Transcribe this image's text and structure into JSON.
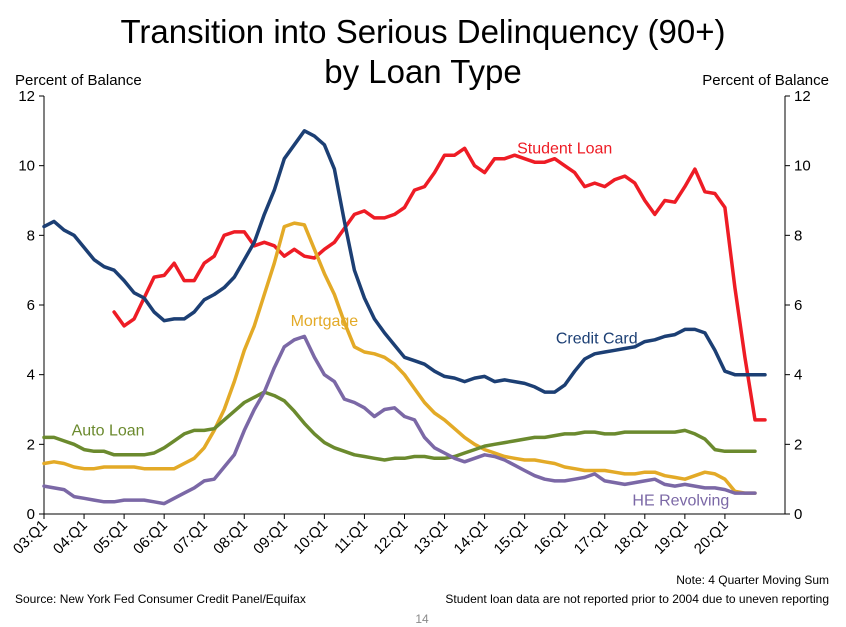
{
  "slide": {
    "title_line1": "Transition into Serious Delinquency (90+)",
    "title_line2": "by Loan Type",
    "y_axis_left_title": "Percent of Balance",
    "y_axis_right_title": "Percent of Balance",
    "note": "Note: 4 Quarter Moving Sum",
    "source": "Source: New York Fed Consumer Credit Panel/Equifax",
    "student_loan_note": "Student loan data are not reported prior to 2004 due to uneven reporting",
    "page_number": "14"
  },
  "chart_data": {
    "type": "line",
    "title": "Transition into Serious Delinquency (90+) by Loan Type",
    "ylabel": "Percent of Balance",
    "ylim": [
      0,
      12
    ],
    "yticks": [
      0,
      2,
      4,
      6,
      8,
      10,
      12
    ],
    "xlim": [
      2003.0,
      2021.5
    ],
    "xtick_labels": [
      "03:Q1",
      "04:Q1",
      "05:Q1",
      "06:Q1",
      "07:Q1",
      "08:Q1",
      "09:Q1",
      "10:Q1",
      "11:Q1",
      "12:Q1",
      "13:Q1",
      "14:Q1",
      "15:Q1",
      "16:Q1",
      "17:Q1",
      "18:Q1",
      "19:Q1",
      "20:Q1"
    ],
    "xtick_values": [
      2003,
      2004,
      2005,
      2006,
      2007,
      2008,
      2009,
      2010,
      2011,
      2012,
      2013,
      2014,
      2015,
      2016,
      2017,
      2018,
      2019,
      2020
    ],
    "grid": false,
    "series": [
      {
        "name": "Student Loan",
        "color": "#ee1c25",
        "x": [
          2004.75,
          2005.0,
          2005.25,
          2005.5,
          2005.75,
          2006.0,
          2006.25,
          2006.5,
          2006.75,
          2007.0,
          2007.25,
          2007.5,
          2007.75,
          2008.0,
          2008.25,
          2008.5,
          2008.75,
          2009.0,
          2009.25,
          2009.5,
          2009.75,
          2010.0,
          2010.25,
          2010.5,
          2010.75,
          2011.0,
          2011.25,
          2011.5,
          2011.75,
          2012.0,
          2012.25,
          2012.5,
          2012.75,
          2013.0,
          2013.25,
          2013.5,
          2013.75,
          2014.0,
          2014.25,
          2014.5,
          2014.75,
          2015.0,
          2015.25,
          2015.5,
          2015.75,
          2016.0,
          2016.25,
          2016.5,
          2016.75,
          2017.0,
          2017.25,
          2017.5,
          2017.75,
          2018.0,
          2018.25,
          2018.5,
          2018.75,
          2019.0,
          2019.25,
          2019.5,
          2019.75,
          2020.0,
          2020.25,
          2020.5,
          2020.75,
          2021.0
        ],
        "values": [
          5.8,
          5.4,
          5.6,
          6.2,
          6.8,
          6.85,
          7.2,
          6.7,
          6.7,
          7.2,
          7.4,
          8.0,
          8.1,
          8.1,
          7.7,
          7.8,
          7.7,
          7.4,
          7.6,
          7.4,
          7.35,
          7.6,
          7.8,
          8.2,
          8.6,
          8.7,
          8.5,
          8.5,
          8.6,
          8.8,
          9.3,
          9.4,
          9.8,
          10.3,
          10.3,
          10.5,
          10.0,
          9.8,
          10.2,
          10.2,
          10.3,
          10.2,
          10.1,
          10.1,
          10.2,
          10.0,
          9.8,
          9.4,
          9.5,
          9.4,
          9.6,
          9.7,
          9.5,
          9.0,
          8.6,
          9.0,
          8.95,
          9.4,
          9.9,
          9.25,
          9.2,
          8.8,
          6.5,
          4.5,
          2.7,
          2.7
        ]
      },
      {
        "name": "Credit Card",
        "color": "#1c3f74",
        "x": [
          2003.0,
          2003.25,
          2003.5,
          2003.75,
          2004.0,
          2004.25,
          2004.5,
          2004.75,
          2005.0,
          2005.25,
          2005.5,
          2005.75,
          2006.0,
          2006.25,
          2006.5,
          2006.75,
          2007.0,
          2007.25,
          2007.5,
          2007.75,
          2008.0,
          2008.25,
          2008.5,
          2008.75,
          2009.0,
          2009.25,
          2009.5,
          2009.75,
          2010.0,
          2010.25,
          2010.5,
          2010.75,
          2011.0,
          2011.25,
          2011.5,
          2011.75,
          2012.0,
          2012.25,
          2012.5,
          2012.75,
          2013.0,
          2013.25,
          2013.5,
          2013.75,
          2014.0,
          2014.25,
          2014.5,
          2014.75,
          2015.0,
          2015.25,
          2015.5,
          2015.75,
          2016.0,
          2016.25,
          2016.5,
          2016.75,
          2017.0,
          2017.25,
          2017.5,
          2017.75,
          2018.0,
          2018.25,
          2018.5,
          2018.75,
          2019.0,
          2019.25,
          2019.5,
          2019.75,
          2020.0,
          2020.25,
          2020.5,
          2020.75,
          2021.0
        ],
        "values": [
          8.25,
          8.4,
          8.15,
          8.0,
          7.65,
          7.3,
          7.1,
          7.0,
          6.7,
          6.35,
          6.2,
          5.8,
          5.55,
          5.6,
          5.6,
          5.8,
          6.15,
          6.3,
          6.5,
          6.8,
          7.3,
          7.8,
          8.6,
          9.3,
          10.2,
          10.6,
          11.0,
          10.85,
          10.6,
          9.9,
          8.4,
          7.0,
          6.2,
          5.6,
          5.2,
          4.85,
          4.5,
          4.4,
          4.3,
          4.1,
          3.95,
          3.9,
          3.8,
          3.9,
          3.95,
          3.8,
          3.85,
          3.8,
          3.75,
          3.65,
          3.5,
          3.5,
          3.7,
          4.1,
          4.45,
          4.6,
          4.65,
          4.7,
          4.75,
          4.8,
          4.95,
          5.0,
          5.1,
          5.15,
          5.3,
          5.3,
          5.2,
          4.7,
          4.1,
          4.0,
          4.0,
          4.0,
          4.0
        ]
      },
      {
        "name": "Mortgage",
        "color": "#e3aa27",
        "x": [
          2003.0,
          2003.25,
          2003.5,
          2003.75,
          2004.0,
          2004.25,
          2004.5,
          2004.75,
          2005.0,
          2005.25,
          2005.5,
          2005.75,
          2006.0,
          2006.25,
          2006.5,
          2006.75,
          2007.0,
          2007.25,
          2007.5,
          2007.75,
          2008.0,
          2008.25,
          2008.5,
          2008.75,
          2009.0,
          2009.25,
          2009.5,
          2009.75,
          2010.0,
          2010.25,
          2010.5,
          2010.75,
          2011.0,
          2011.25,
          2011.5,
          2011.75,
          2012.0,
          2012.25,
          2012.5,
          2012.75,
          2013.0,
          2013.25,
          2013.5,
          2013.75,
          2014.0,
          2014.25,
          2014.5,
          2014.75,
          2015.0,
          2015.25,
          2015.5,
          2015.75,
          2016.0,
          2016.25,
          2016.5,
          2016.75,
          2017.0,
          2017.25,
          2017.5,
          2017.75,
          2018.0,
          2018.25,
          2018.5,
          2018.75,
          2019.0,
          2019.25,
          2019.5,
          2019.75,
          2020.0,
          2020.25,
          2020.5,
          2020.75
        ],
        "values": [
          1.45,
          1.5,
          1.45,
          1.35,
          1.3,
          1.3,
          1.35,
          1.35,
          1.35,
          1.35,
          1.3,
          1.3,
          1.3,
          1.3,
          1.45,
          1.6,
          1.9,
          2.4,
          3.0,
          3.8,
          4.7,
          5.4,
          6.3,
          7.2,
          8.25,
          8.35,
          8.3,
          7.6,
          6.9,
          6.3,
          5.5,
          4.8,
          4.65,
          4.6,
          4.5,
          4.3,
          4.0,
          3.6,
          3.2,
          2.9,
          2.7,
          2.45,
          2.2,
          2.0,
          1.85,
          1.75,
          1.65,
          1.6,
          1.55,
          1.55,
          1.5,
          1.45,
          1.35,
          1.3,
          1.25,
          1.25,
          1.25,
          1.2,
          1.15,
          1.15,
          1.2,
          1.2,
          1.1,
          1.05,
          1.0,
          1.1,
          1.2,
          1.15,
          1.0,
          0.65,
          0.6,
          0.6
        ]
      },
      {
        "name": "Auto Loan",
        "color": "#6b8a2e",
        "x": [
          2003.0,
          2003.25,
          2003.5,
          2003.75,
          2004.0,
          2004.25,
          2004.5,
          2004.75,
          2005.0,
          2005.25,
          2005.5,
          2005.75,
          2006.0,
          2006.25,
          2006.5,
          2006.75,
          2007.0,
          2007.25,
          2007.5,
          2007.75,
          2008.0,
          2008.25,
          2008.5,
          2008.75,
          2009.0,
          2009.25,
          2009.5,
          2009.75,
          2010.0,
          2010.25,
          2010.5,
          2010.75,
          2011.0,
          2011.25,
          2011.5,
          2011.75,
          2012.0,
          2012.25,
          2012.5,
          2012.75,
          2013.0,
          2013.25,
          2013.5,
          2013.75,
          2014.0,
          2014.25,
          2014.5,
          2014.75,
          2015.0,
          2015.25,
          2015.5,
          2015.75,
          2016.0,
          2016.25,
          2016.5,
          2016.75,
          2017.0,
          2017.25,
          2017.5,
          2017.75,
          2018.0,
          2018.25,
          2018.5,
          2018.75,
          2019.0,
          2019.25,
          2019.5,
          2019.75,
          2020.0,
          2020.25,
          2020.5,
          2020.75
        ],
        "values": [
          2.2,
          2.2,
          2.1,
          2.0,
          1.85,
          1.8,
          1.8,
          1.7,
          1.7,
          1.7,
          1.7,
          1.75,
          1.9,
          2.1,
          2.3,
          2.4,
          2.4,
          2.45,
          2.7,
          2.95,
          3.2,
          3.35,
          3.5,
          3.4,
          3.25,
          2.95,
          2.6,
          2.3,
          2.05,
          1.9,
          1.8,
          1.7,
          1.65,
          1.6,
          1.55,
          1.6,
          1.6,
          1.65,
          1.65,
          1.6,
          1.6,
          1.65,
          1.75,
          1.85,
          1.95,
          2.0,
          2.05,
          2.1,
          2.15,
          2.2,
          2.2,
          2.25,
          2.3,
          2.3,
          2.35,
          2.35,
          2.3,
          2.3,
          2.35,
          2.35,
          2.35,
          2.35,
          2.35,
          2.35,
          2.4,
          2.3,
          2.15,
          1.85,
          1.8,
          1.8,
          1.8,
          1.8
        ]
      },
      {
        "name": "HE Revolving",
        "color": "#7b68a6",
        "x": [
          2003.0,
          2003.25,
          2003.5,
          2003.75,
          2004.0,
          2004.25,
          2004.5,
          2004.75,
          2005.0,
          2005.25,
          2005.5,
          2005.75,
          2006.0,
          2006.25,
          2006.5,
          2006.75,
          2007.0,
          2007.25,
          2007.5,
          2007.75,
          2008.0,
          2008.25,
          2008.5,
          2008.75,
          2009.0,
          2009.25,
          2009.5,
          2009.75,
          2010.0,
          2010.25,
          2010.5,
          2010.75,
          2011.0,
          2011.25,
          2011.5,
          2011.75,
          2012.0,
          2012.25,
          2012.5,
          2012.75,
          2013.0,
          2013.25,
          2013.5,
          2013.75,
          2014.0,
          2014.25,
          2014.5,
          2014.75,
          2015.0,
          2015.25,
          2015.5,
          2015.75,
          2016.0,
          2016.25,
          2016.5,
          2016.75,
          2017.0,
          2017.25,
          2017.5,
          2017.75,
          2018.0,
          2018.25,
          2018.5,
          2018.75,
          2019.0,
          2019.25,
          2019.5,
          2019.75,
          2020.0,
          2020.25,
          2020.5,
          2020.75
        ],
        "values": [
          0.8,
          0.75,
          0.7,
          0.5,
          0.45,
          0.4,
          0.35,
          0.35,
          0.4,
          0.4,
          0.4,
          0.35,
          0.3,
          0.45,
          0.6,
          0.75,
          0.95,
          1.0,
          1.35,
          1.7,
          2.4,
          3.0,
          3.5,
          4.2,
          4.8,
          5.0,
          5.1,
          4.5,
          4.0,
          3.8,
          3.3,
          3.2,
          3.05,
          2.8,
          3.0,
          3.05,
          2.8,
          2.7,
          2.2,
          1.9,
          1.75,
          1.6,
          1.5,
          1.6,
          1.7,
          1.65,
          1.55,
          1.4,
          1.25,
          1.1,
          1.0,
          0.95,
          0.95,
          1.0,
          1.05,
          1.15,
          0.95,
          0.9,
          0.85,
          0.9,
          0.95,
          1.0,
          0.85,
          0.8,
          0.85,
          0.8,
          0.75,
          0.75,
          0.7,
          0.6,
          0.6,
          0.6
        ]
      }
    ]
  }
}
